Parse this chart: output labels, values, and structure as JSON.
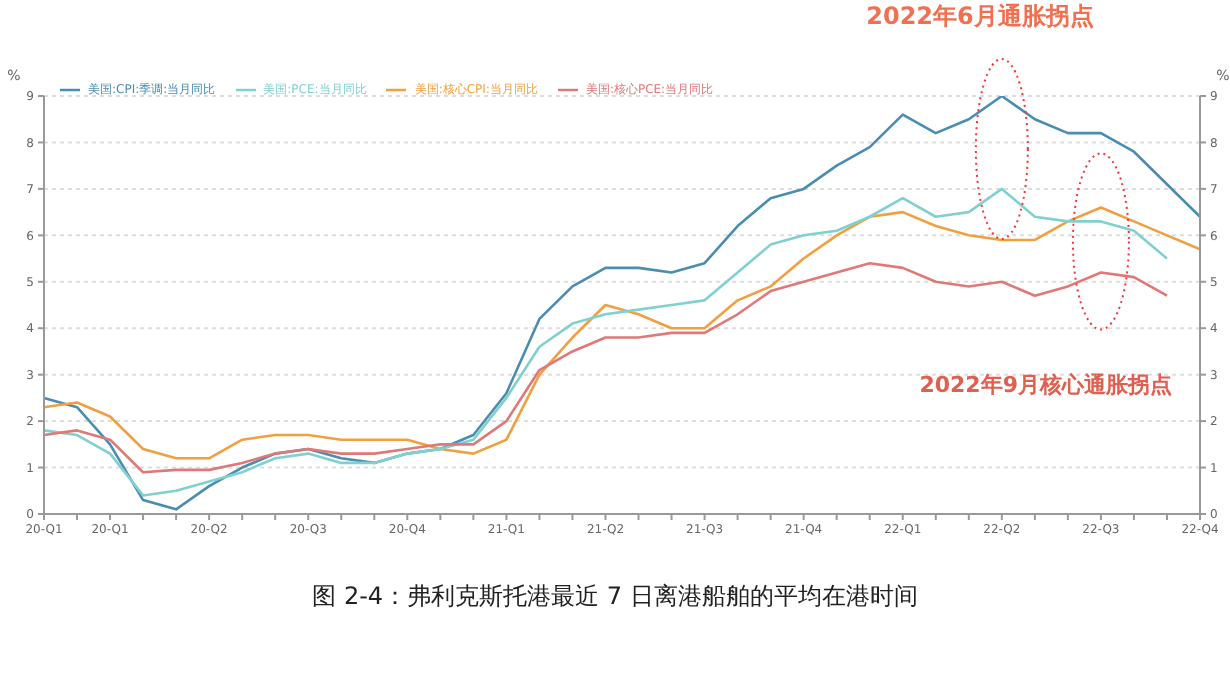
{
  "chart_data": {
    "type": "line",
    "ylabel": "%",
    "y2label": "%",
    "categories": [
      "20-Q1",
      null,
      "20-Q1",
      null,
      null,
      "20-Q2",
      null,
      null,
      "20-Q3",
      null,
      null,
      "20-Q4",
      null,
      null,
      "21-Q1",
      null,
      null,
      "21-Q2",
      null,
      null,
      "21-Q3",
      null,
      null,
      "21-Q4",
      null,
      null,
      "22-Q1",
      null,
      null,
      "22-Q2",
      null,
      null,
      "22-Q3",
      null,
      null,
      "22-Q4"
    ],
    "series": [
      {
        "name": "美国:CPI:季调:当月同比",
        "color": "#4a8db0",
        "values": [
          2.5,
          2.3,
          1.5,
          0.3,
          0.1,
          0.6,
          1.0,
          1.3,
          1.4,
          1.2,
          1.1,
          1.3,
          1.4,
          1.7,
          2.6,
          4.2,
          4.9,
          5.3,
          5.3,
          5.2,
          5.4,
          6.2,
          6.8,
          7.0,
          7.5,
          7.9,
          8.6,
          8.2,
          8.5,
          9.0,
          8.5,
          8.2,
          8.2,
          7.8,
          7.1,
          6.4
        ]
      },
      {
        "name": "美国:核心CPI:当月同比",
        "color": "#f0a040",
        "values": [
          2.3,
          2.4,
          2.1,
          1.4,
          1.2,
          1.2,
          1.6,
          1.7,
          1.7,
          1.6,
          1.6,
          1.6,
          1.4,
          1.3,
          1.6,
          3.0,
          3.8,
          4.5,
          4.3,
          4.0,
          4.0,
          4.6,
          4.9,
          5.5,
          6.0,
          6.4,
          6.5,
          6.2,
          6.0,
          5.9,
          5.9,
          6.3,
          6.6,
          6.3,
          6.0,
          5.7
        ]
      },
      {
        "name": "美国:PCE:当月同比",
        "color": "#80d0d0",
        "values": [
          1.8,
          1.7,
          1.3,
          0.4,
          0.5,
          0.7,
          0.9,
          1.2,
          1.3,
          1.1,
          1.1,
          1.3,
          1.4,
          1.6,
          2.5,
          3.6,
          4.1,
          4.3,
          4.4,
          4.5,
          4.6,
          5.2,
          5.8,
          6.0,
          6.1,
          6.4,
          6.8,
          6.4,
          6.5,
          7.0,
          6.4,
          6.3,
          6.3,
          6.1,
          5.5,
          null
        ]
      },
      {
        "name": "美国:核心PCE:当月同比",
        "color": "#e07878",
        "values": [
          1.7,
          1.8,
          1.6,
          0.9,
          0.95,
          0.95,
          1.1,
          1.3,
          1.4,
          1.3,
          1.3,
          1.4,
          1.5,
          1.5,
          2.0,
          3.1,
          3.5,
          3.8,
          3.8,
          3.9,
          3.9,
          4.3,
          4.8,
          5.0,
          5.2,
          5.4,
          5.3,
          5.0,
          4.9,
          5.0,
          4.7,
          4.9,
          5.2,
          5.1,
          4.7,
          null
        ]
      }
    ],
    "ylim": [
      0,
      9
    ],
    "yticks": [
      0,
      1,
      2,
      3,
      4,
      5,
      6,
      7,
      8,
      9
    ],
    "y2lim": [
      0,
      9
    ],
    "y2ticks": [
      0,
      1,
      2,
      3,
      4,
      5,
      6,
      7,
      8,
      9
    ],
    "grid": "y",
    "legend": "top left",
    "marker": "none",
    "line_style": "solid",
    "annotations": [
      "2022年6月通胀拐点",
      "2022年9月核心通胀拐点",
      "图 2-4：弗利克斯托港最近 7 日离港船舶的平均在港时间"
    ]
  }
}
